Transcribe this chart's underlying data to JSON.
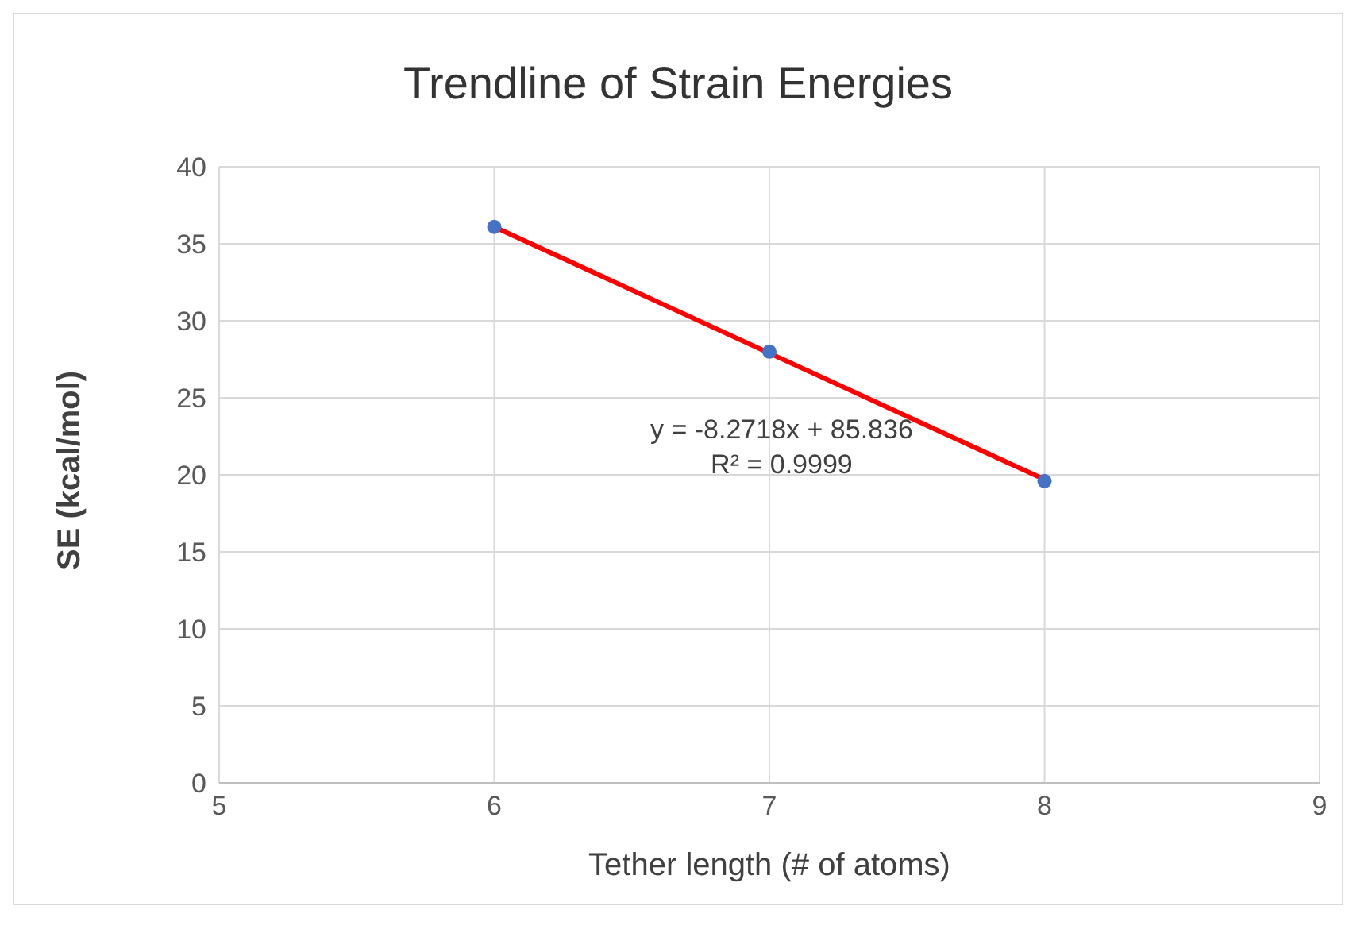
{
  "chart_data": {
    "type": "scatter",
    "title": "Trendline of Strain Energies",
    "xlabel": "Tether length (# of atoms)",
    "ylabel": "SE (kcal/mol)",
    "series": [
      {
        "type": "scatter",
        "color": "#4472c4",
        "x": [
          6,
          7,
          8
        ],
        "values": [
          36.1,
          28.0,
          19.6
        ],
        "marker": "circle"
      },
      {
        "type": "line",
        "color": "#ff0000",
        "x": [
          6,
          8
        ],
        "values": [
          36.1,
          19.7
        ],
        "marker": "none"
      }
    ],
    "annotations": [
      "y = -8.2718x + 85.836",
      "R² = 0.9999"
    ],
    "xlim": [
      5,
      9
    ],
    "xticks": [
      5,
      6,
      7,
      8,
      9
    ],
    "ylim": [
      0,
      40
    ],
    "yticks": [
      0,
      5,
      10,
      15,
      20,
      25,
      30,
      35,
      40
    ],
    "grid": true
  }
}
